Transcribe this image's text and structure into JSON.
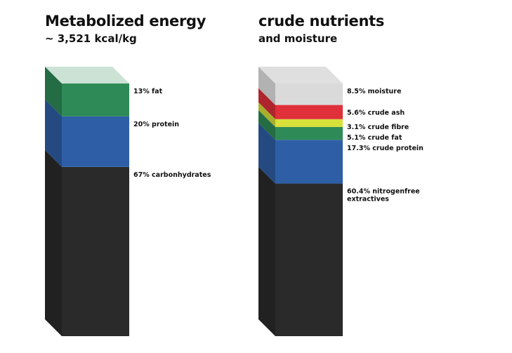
{
  "chart_data": [
    {
      "type": "stacked-bar-3d",
      "title": "Metabolized energy",
      "subtitle": "~ 3,521 kcal/kg",
      "segments": [
        {
          "label": "67% carbonhydrates",
          "value": 67,
          "color": "#2a2a2a"
        },
        {
          "label": "20% protein",
          "value": 20,
          "color": "#2e5fa6"
        },
        {
          "label": "13% fat",
          "value": 13,
          "color": "#2e8a57"
        }
      ]
    },
    {
      "type": "stacked-bar-3d",
      "title": "crude nutrients",
      "subtitle": "and moisture",
      "segments": [
        {
          "label": "60.4% nitrogenfree extractives",
          "value": 60.4,
          "color": "#2a2a2a"
        },
        {
          "label": "17.3% crude protein",
          "value": 17.3,
          "color": "#2e5fa6"
        },
        {
          "label": "5.1% crude fat",
          "value": 5.1,
          "color": "#2e8a57"
        },
        {
          "label": "3.1% crude fibre",
          "value": 3.1,
          "color": "#d8e03a"
        },
        {
          "label": "5.6% crude ash",
          "value": 5.6,
          "color": "#e0303a"
        },
        {
          "label": "8.5% moisture",
          "value": 8.5,
          "color": "#d3d3d3"
        }
      ]
    }
  ]
}
